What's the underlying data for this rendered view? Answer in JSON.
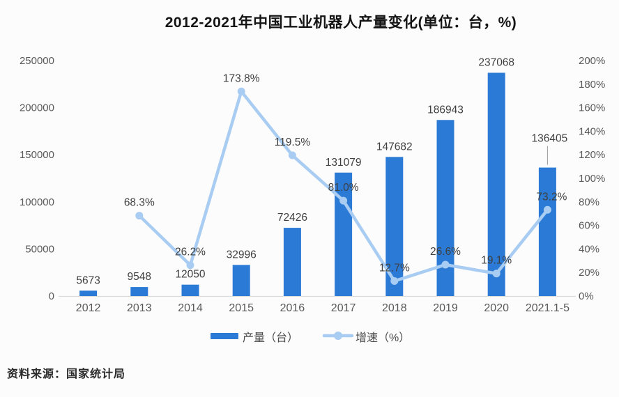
{
  "source": "资料来源：国家统计局",
  "colors": {
    "bar": "#2b7ad6",
    "line": "#a8ccf2",
    "axis_text": "#595959",
    "label_text": "#3f3f3f",
    "axis_line": "#d9d9d9",
    "callout_line": "#9a9a9a",
    "legend_text": "#4a4a4a",
    "title_text": "#141414",
    "background": "#fcfcfc"
  },
  "chart_data": {
    "type": "combo",
    "title": "2012-2021年中国工业机器人产量变化(单位：台，%)",
    "categories": [
      "2012",
      "2013",
      "2014",
      "2015",
      "2016",
      "2017",
      "2018",
      "2019",
      "2020",
      "2021.1-5"
    ],
    "series": [
      {
        "name": "产量（台）",
        "type": "bar",
        "axis": "left",
        "color": "#2b7ad6",
        "values": [
          5673,
          9548,
          12050,
          32996,
          72426,
          131079,
          147682,
          186943,
          237068,
          136405
        ],
        "value_labels": [
          "5673",
          "9548",
          "12050",
          "32996",
          "72426",
          "131079",
          "147682",
          "186943",
          "237068",
          "136405"
        ],
        "callout_indices": [
          9
        ]
      },
      {
        "name": "增速（%）",
        "type": "line",
        "axis": "right",
        "color": "#a8ccf2",
        "values": [
          null,
          68.3,
          26.2,
          173.8,
          119.5,
          81.0,
          12.7,
          26.6,
          19.1,
          73.2
        ],
        "value_labels": [
          "",
          "68.3%",
          "26.2%",
          "173.8%",
          "119.5%",
          "81.0%",
          "12.7%",
          "26.6%",
          "19.1%",
          "73.2%"
        ]
      }
    ],
    "left_axis": {
      "min": 0,
      "max": 250000,
      "step": 50000,
      "ticks": [
        "0",
        "50000",
        "100000",
        "150000",
        "200000",
        "250000"
      ]
    },
    "right_axis": {
      "min": 0,
      "max": 200,
      "step": 20,
      "ticks": [
        "0%",
        "20%",
        "40%",
        "60%",
        "80%",
        "100%",
        "120%",
        "140%",
        "160%",
        "180%",
        "200%"
      ]
    },
    "grid": false,
    "legend_position": "bottom"
  }
}
